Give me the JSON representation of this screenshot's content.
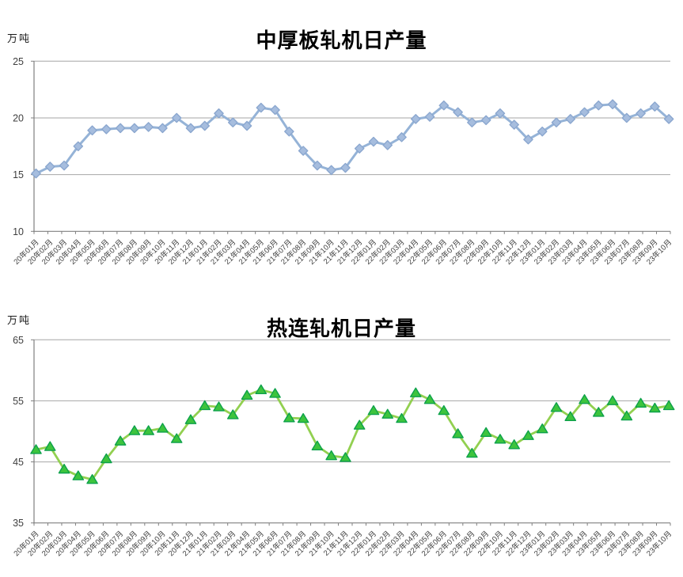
{
  "style": {
    "background": "#ffffff",
    "grid_color": "#a6a6a6",
    "axis_color": "#808080",
    "tick_label_color": "#3f3f3f",
    "title_color": "#000000"
  },
  "chart_data": [
    {
      "type": "line",
      "title": "中厚板轧机日产量",
      "ylabel": "万吨",
      "xlabel": "",
      "legend": false,
      "grid": true,
      "marker": "diamond",
      "colors": {
        "line": "#95b3d7",
        "marker_fill": "#a6bdde",
        "marker_edge": "#8ba7cf"
      },
      "ylim": [
        10,
        25
      ],
      "yticks": [
        25,
        20,
        15,
        10
      ],
      "categories": [
        "20年01月",
        "20年02月",
        "20年03月",
        "20年04月",
        "20年05月",
        "20年06月",
        "20年07月",
        "20年08月",
        "20年09月",
        "20年10月",
        "20年11月",
        "20年12月",
        "21年01月",
        "21年02月",
        "21年03月",
        "21年04月",
        "21年05月",
        "21年06月",
        "21年07月",
        "21年08月",
        "21年09月",
        "21年10月",
        "21年11月",
        "21年12月",
        "22年01月",
        "22年02月",
        "22年03月",
        "22年04月",
        "22年05月",
        "22年06月",
        "22年07月",
        "22年08月",
        "22年09月",
        "22年10月",
        "22年11月",
        "22年12月",
        "23年01月",
        "23年02月",
        "23年03月",
        "23年04月",
        "23年05月",
        "23年06月",
        "23年07月",
        "23年08月",
        "23年09月",
        "23年10月"
      ],
      "values": [
        15.1,
        15.7,
        15.8,
        17.5,
        18.9,
        19.0,
        19.1,
        19.1,
        19.2,
        19.1,
        20.0,
        19.1,
        19.3,
        20.4,
        19.6,
        19.3,
        20.9,
        20.7,
        18.8,
        17.1,
        15.8,
        15.4,
        15.6,
        17.3,
        17.9,
        17.6,
        18.3,
        19.9,
        20.1,
        21.1,
        20.5,
        19.6,
        19.8,
        20.4,
        19.4,
        18.1,
        18.8,
        19.6,
        19.9,
        20.5,
        21.1,
        21.2,
        20.0,
        20.4,
        21.0,
        19.9
      ]
    },
    {
      "type": "line",
      "title": "热连轧机日产量",
      "ylabel": "万吨",
      "xlabel": "",
      "legend": false,
      "grid": true,
      "marker": "triangle",
      "colors": {
        "line": "#92d050",
        "marker_fill": "#3dc43d",
        "marker_edge": "#0da14b"
      },
      "ylim": [
        35,
        65
      ],
      "yticks": [
        65,
        55,
        45,
        35
      ],
      "categories": [
        "20年01月",
        "20年02月",
        "20年03月",
        "20年04月",
        "20年05月",
        "20年06月",
        "20年07月",
        "20年08月",
        "20年09月",
        "20年10月",
        "20年11月",
        "20年12月",
        "21年01月",
        "21年02月",
        "21年03月",
        "21年04月",
        "21年05月",
        "21年06月",
        "21年07月",
        "21年08月",
        "21年09月",
        "21年10月",
        "21年11月",
        "21年12月",
        "22年01月",
        "22年02月",
        "22年03月",
        "22年04月",
        "22年05月",
        "22年06月",
        "22年07月",
        "22年08月",
        "22年09月",
        "22年10月",
        "22年11月",
        "22年12月",
        "23年01月",
        "23年02月",
        "23年03月",
        "23年04月",
        "23年05月",
        "23年06月",
        "23年07月",
        "23年08月",
        "23年09月",
        "23年10月"
      ],
      "values": [
        47.0,
        47.5,
        43.8,
        42.7,
        42.1,
        45.5,
        48.4,
        50.1,
        50.1,
        50.5,
        48.8,
        51.9,
        54.2,
        54.0,
        52.7,
        55.9,
        56.8,
        56.2,
        52.2,
        52.1,
        47.6,
        46.0,
        45.7,
        51.0,
        53.4,
        52.8,
        52.1,
        56.3,
        55.2,
        53.4,
        49.6,
        46.4,
        49.8,
        48.7,
        47.8,
        49.3,
        50.4,
        53.9,
        52.4,
        55.2,
        53.1,
        55.0,
        52.5,
        54.6,
        53.8,
        54.2
      ]
    }
  ]
}
